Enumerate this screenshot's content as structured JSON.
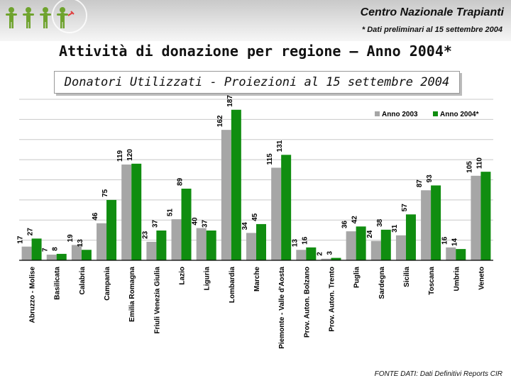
{
  "header": {
    "org_name": "Centro Nazionale Trapianti",
    "note": "* Dati preliminari al 15 settembre 2004"
  },
  "page_title": "Attività  di donazione per regione – Anno 2004*",
  "chart_title": "Donatori Utilizzati - Proiezioni al 15 settembre 2004",
  "footer": "FONTE DATI: Dati Definitivi Reports CIR",
  "colors": {
    "series_2003": "#a6a6a6",
    "series_2004": "#108d10",
    "grid": "#c8c8c8",
    "axis": "#000000"
  },
  "chart_data": {
    "type": "bar",
    "categories": [
      "Abruzzo - Molise",
      "Basilicata",
      "Calabria",
      "Campania",
      "Emilia Romagna",
      "Friuli Venezia Giulia",
      "Lazio",
      "Liguria",
      "Lombardia",
      "Marche",
      "Piemonte - Valle d'Aosta",
      "Prov. Auton. Bolzano",
      "Prov. Auton. Trento",
      "Puglia",
      "Sardegna",
      "Sicilia",
      "Toscana",
      "Umbria",
      "Veneto"
    ],
    "series": [
      {
        "name": "Anno 2003",
        "values": [
          17,
          7,
          19,
          46,
          119,
          23,
          51,
          40,
          162,
          34,
          115,
          13,
          2,
          36,
          24,
          31,
          87,
          16,
          105
        ]
      },
      {
        "name": "Anno 2004*",
        "values": [
          27,
          8,
          13,
          75,
          120,
          37,
          89,
          37,
          187,
          45,
          131,
          16,
          3,
          42,
          38,
          57,
          93,
          14,
          110
        ]
      }
    ],
    "ylim": [
      0,
      200
    ],
    "grid": true,
    "legend_position": "top-right"
  }
}
